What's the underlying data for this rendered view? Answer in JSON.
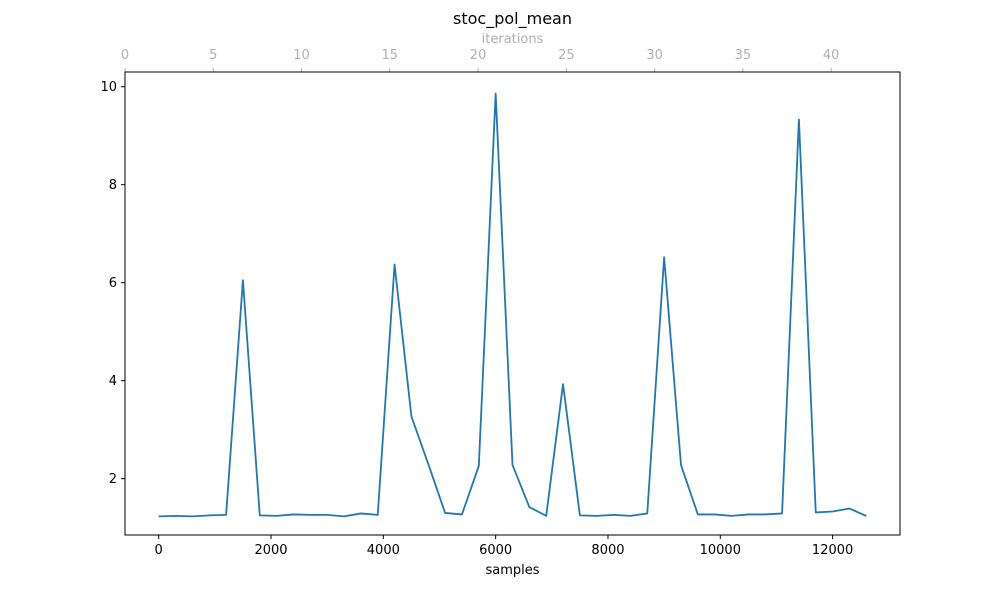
{
  "chart_data": {
    "type": "line",
    "title": "stoc_pol_mean",
    "xlabel": "samples",
    "ylabel": "",
    "xlim": [
      -600,
      13200
    ],
    "ylim": [
      0.85,
      10.3
    ],
    "grid": false,
    "x_ticks": [
      0,
      2000,
      4000,
      6000,
      8000,
      10000,
      12000
    ],
    "y_ticks": [
      2,
      4,
      6,
      8,
      10
    ],
    "top_axis": {
      "label": "iterations",
      "lim": [
        0,
        43.9
      ],
      "ticks": [
        0,
        5,
        10,
        15,
        20,
        25,
        30,
        35,
        40
      ],
      "color": "#b0b0b0"
    },
    "series": [
      {
        "color": "#1f77b4",
        "x": [
          0,
          300,
          600,
          900,
          1200,
          1500,
          1800,
          2100,
          2400,
          2700,
          3000,
          3300,
          3600,
          3900,
          4200,
          4500,
          4800,
          5100,
          5400,
          5700,
          6000,
          6300,
          6600,
          6900,
          7200,
          7500,
          7800,
          8100,
          8400,
          8700,
          9000,
          9300,
          9600,
          9900,
          10200,
          10500,
          10800,
          11100,
          11400,
          11700,
          12000,
          12300,
          12600
        ],
        "y": [
          1.23,
          1.24,
          1.23,
          1.25,
          1.26,
          6.05,
          1.25,
          1.24,
          1.27,
          1.26,
          1.26,
          1.23,
          1.29,
          1.26,
          6.37,
          3.27,
          2.3,
          1.3,
          1.27,
          2.26,
          9.86,
          2.28,
          1.42,
          1.24,
          3.93,
          1.25,
          1.24,
          1.26,
          1.24,
          1.29,
          6.52,
          2.28,
          1.27,
          1.27,
          1.24,
          1.27,
          1.27,
          1.29,
          9.33,
          1.31,
          1.33,
          1.39,
          1.24
        ]
      }
    ]
  }
}
